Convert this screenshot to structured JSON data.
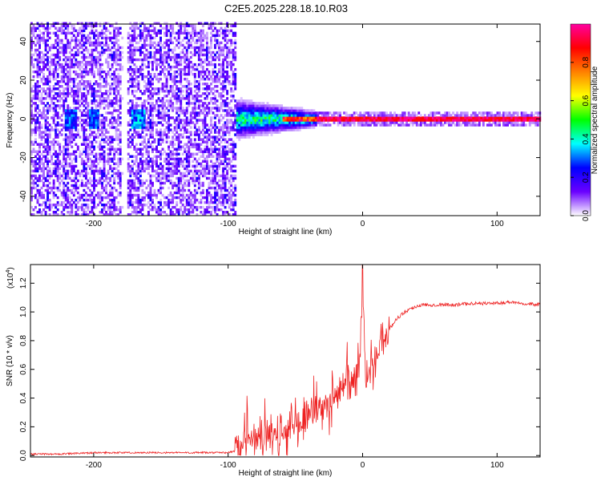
{
  "figure_title": "C2E5.2025.228.18.10.R03",
  "chart_data": [
    {
      "type": "heatmap",
      "xlabel": "Height of straight line (km)",
      "ylabel": "Frequency (Hz)",
      "xlim": [
        -247,
        132
      ],
      "ylim": [
        -50,
        49
      ],
      "x_ticks": [
        -200,
        -100,
        0,
        100
      ],
      "x_tick_labels": [
        "-200",
        "-100",
        "0",
        "100"
      ],
      "y_ticks": [
        -40,
        -20,
        0,
        20,
        40
      ],
      "y_tick_labels": [
        "-40",
        "-20",
        "0",
        "20",
        "40"
      ],
      "colorbar": {
        "label": "Normalized spectral amplitude",
        "range": [
          0,
          1
        ],
        "ticks": [
          0.0,
          0.2,
          0.4,
          0.6,
          0.8
        ],
        "tick_labels": [
          "0.0",
          "0.2",
          "0.4",
          "0.6",
          "0.8"
        ],
        "colormap": [
          "#ffffff",
          "#6a00ff",
          "#0000ff",
          "#00ffff",
          "#00ff00",
          "#ffff00",
          "#ff8000",
          "#ff0000",
          "#ff00a0"
        ]
      },
      "regions": [
        {
          "x": [
            -247,
            -95
          ],
          "description": "broadband noise across all frequencies",
          "peak_amplitude": 0.25
        },
        {
          "x": [
            -222,
            -214
          ],
          "freq": [
            -5,
            5
          ],
          "peak_amplitude": 0.35
        },
        {
          "x": [
            -204,
            -197
          ],
          "freq": [
            -5,
            5
          ],
          "peak_amplitude": 0.35
        },
        {
          "x": [
            -172,
            -163
          ],
          "freq": [
            -5,
            5
          ],
          "peak_amplitude": 0.4
        },
        {
          "x": [
            -95,
            -35
          ],
          "freq": [
            -8,
            8
          ],
          "peak_amplitude": 0.5
        },
        {
          "x": [
            -35,
            132
          ],
          "freq": [
            -1.5,
            1.5
          ],
          "peak_amplitude": 1.0
        }
      ]
    },
    {
      "type": "line",
      "xlabel": "Height of straight line (km)",
      "ylabel": "SNR (10 * v/v)",
      "y_multiplier_label": "(x10",
      "y_multiplier_exponent": "4",
      "y_multiplier_close": ")",
      "xlim": [
        -247,
        132
      ],
      "ylim": [
        -0.01,
        1.33
      ],
      "x_ticks": [
        -200,
        -100,
        0,
        100
      ],
      "x_tick_labels": [
        "-200",
        "-100",
        "0",
        "100"
      ],
      "y_ticks": [
        0.0,
        0.2,
        0.4,
        0.6,
        0.8,
        1.0,
        1.2
      ],
      "y_tick_labels": [
        "0.0",
        "0.2",
        "0.4",
        "0.6",
        "0.8",
        "1.0",
        "1.2"
      ],
      "grid": false,
      "series": [
        {
          "color": "#ee2222",
          "x": [
            -247,
            -230,
            -210,
            -200,
            -190,
            -180,
            -160,
            -140,
            -120,
            -100,
            -95,
            -85,
            -75,
            -65,
            -55,
            -45,
            -40,
            -35,
            -30,
            -25,
            -20,
            -15,
            -10,
            -5,
            -2,
            0,
            2,
            5,
            10,
            15,
            20,
            25,
            30,
            35,
            40,
            45,
            50,
            60,
            70,
            80,
            90,
            100,
            110,
            120,
            132
          ],
          "y": [
            0.01,
            0.01,
            0.015,
            0.02,
            0.02,
            0.02,
            0.02,
            0.02,
            0.02,
            0.02,
            0.03,
            0.12,
            0.14,
            0.15,
            0.18,
            0.25,
            0.3,
            0.35,
            0.32,
            0.4,
            0.4,
            0.45,
            0.5,
            0.55,
            0.6,
            1.3,
            0.55,
            0.6,
            0.7,
            0.8,
            0.88,
            0.95,
            0.99,
            1.02,
            1.04,
            1.05,
            1.05,
            1.05,
            1.05,
            1.06,
            1.06,
            1.06,
            1.07,
            1.06,
            1.05
          ]
        }
      ]
    }
  ]
}
